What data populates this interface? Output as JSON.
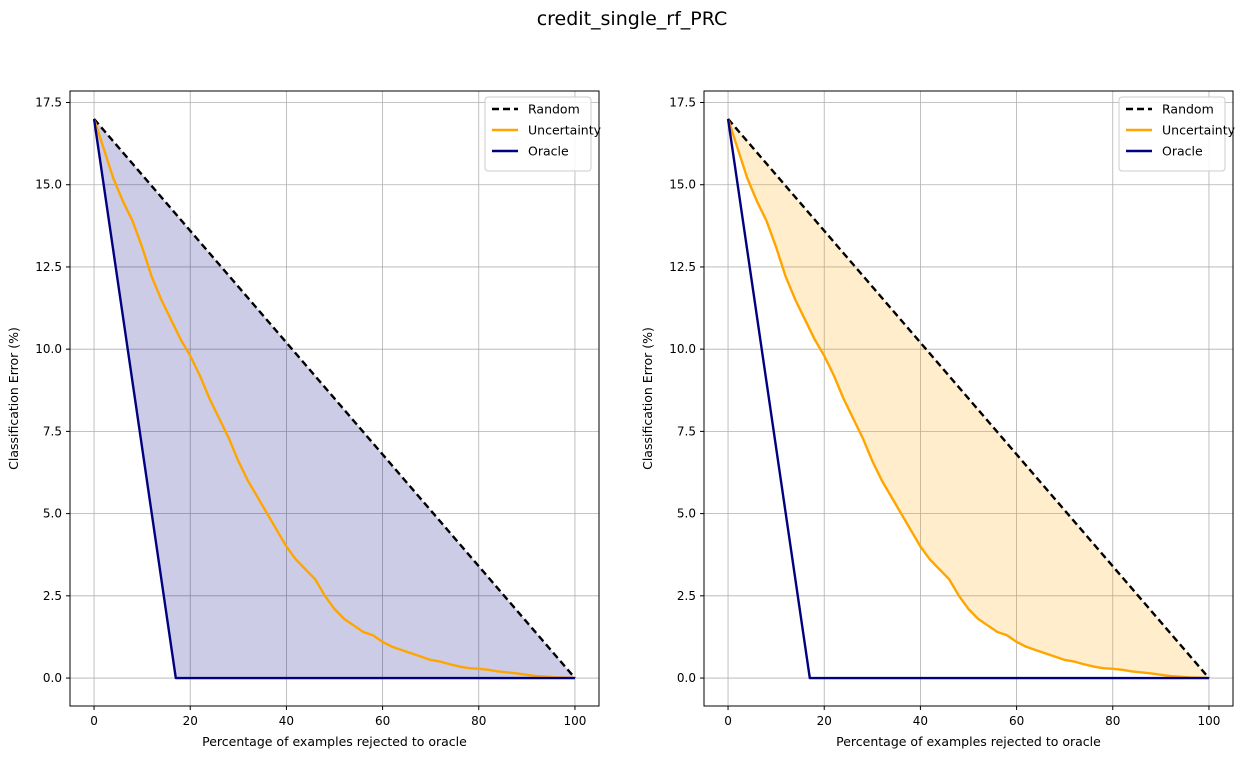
{
  "figure": {
    "suptitle": "credit_single_rf_PRC"
  },
  "chart_data": [
    {
      "type": "line",
      "xlabel": "Percentage of examples rejected to oracle",
      "ylabel": "Classification Error (%)",
      "xlim": [
        -5,
        105
      ],
      "ylim": [
        -0.85,
        17.85
      ],
      "xticks": [
        0,
        20,
        40,
        60,
        80,
        100
      ],
      "yticks": [
        0.0,
        2.5,
        5.0,
        7.5,
        10.0,
        12.5,
        15.0,
        17.5
      ],
      "xtick_labels": [
        "0",
        "20",
        "40",
        "60",
        "80",
        "100"
      ],
      "ytick_labels": [
        "0.0",
        "2.5",
        "5.0",
        "7.5",
        "10.0",
        "12.5",
        "15.0",
        "17.5"
      ],
      "grid": true,
      "legend_position": "top-right",
      "fill": {
        "between": [
          "Random",
          "Oracle"
        ],
        "color": "#000080",
        "alpha": 0.2
      },
      "series": [
        {
          "name": "Random",
          "color": "#000000",
          "style": "dashed",
          "x": [
            0,
            100
          ],
          "y": [
            17.0,
            0.0
          ]
        },
        {
          "name": "Uncertainty",
          "color": "#FFA500",
          "style": "solid",
          "x": [
            0,
            2,
            4,
            6,
            8,
            10,
            12,
            14,
            16,
            18,
            20,
            22,
            24,
            26,
            28,
            30,
            32,
            34,
            36,
            38,
            40,
            42,
            44,
            46,
            48,
            50,
            52,
            54,
            56,
            58,
            60,
            62,
            64,
            66,
            68,
            70,
            72,
            74,
            76,
            78,
            80,
            82,
            84,
            86,
            88,
            90,
            92,
            94,
            96,
            98,
            100
          ],
          "y": [
            17.0,
            16.1,
            15.2,
            14.5,
            13.9,
            13.1,
            12.2,
            11.5,
            10.9,
            10.3,
            9.8,
            9.2,
            8.5,
            7.9,
            7.3,
            6.6,
            6.0,
            5.5,
            5.0,
            4.5,
            4.0,
            3.6,
            3.3,
            3.0,
            2.5,
            2.1,
            1.8,
            1.6,
            1.4,
            1.3,
            1.1,
            0.95,
            0.85,
            0.75,
            0.65,
            0.55,
            0.5,
            0.42,
            0.35,
            0.3,
            0.28,
            0.25,
            0.2,
            0.17,
            0.14,
            0.1,
            0.06,
            0.04,
            0.02,
            0.01,
            0.0
          ]
        },
        {
          "name": "Oracle",
          "color": "#000080",
          "style": "solid",
          "x": [
            0,
            17,
            100
          ],
          "y": [
            17.0,
            0.0,
            0.0
          ]
        }
      ]
    },
    {
      "type": "line",
      "xlabel": "Percentage of examples rejected to oracle",
      "ylabel": "Classification Error (%)",
      "xlim": [
        -5,
        105
      ],
      "ylim": [
        -0.85,
        17.85
      ],
      "xticks": [
        0,
        20,
        40,
        60,
        80,
        100
      ],
      "yticks": [
        0.0,
        2.5,
        5.0,
        7.5,
        10.0,
        12.5,
        15.0,
        17.5
      ],
      "xtick_labels": [
        "0",
        "20",
        "40",
        "60",
        "80",
        "100"
      ],
      "ytick_labels": [
        "0.0",
        "2.5",
        "5.0",
        "7.5",
        "10.0",
        "12.5",
        "15.0",
        "17.5"
      ],
      "grid": true,
      "legend_position": "top-right",
      "fill": {
        "between": [
          "Random",
          "Uncertainty"
        ],
        "color": "#FFA500",
        "alpha": 0.2
      },
      "series": [
        {
          "name": "Random",
          "color": "#000000",
          "style": "dashed",
          "x": [
            0,
            100
          ],
          "y": [
            17.0,
            0.0
          ]
        },
        {
          "name": "Uncertainty",
          "color": "#FFA500",
          "style": "solid",
          "x": [
            0,
            2,
            4,
            6,
            8,
            10,
            12,
            14,
            16,
            18,
            20,
            22,
            24,
            26,
            28,
            30,
            32,
            34,
            36,
            38,
            40,
            42,
            44,
            46,
            48,
            50,
            52,
            54,
            56,
            58,
            60,
            62,
            64,
            66,
            68,
            70,
            72,
            74,
            76,
            78,
            80,
            82,
            84,
            86,
            88,
            90,
            92,
            94,
            96,
            98,
            100
          ],
          "y": [
            17.0,
            16.1,
            15.2,
            14.5,
            13.9,
            13.1,
            12.2,
            11.5,
            10.9,
            10.3,
            9.8,
            9.2,
            8.5,
            7.9,
            7.3,
            6.6,
            6.0,
            5.5,
            5.0,
            4.5,
            4.0,
            3.6,
            3.3,
            3.0,
            2.5,
            2.1,
            1.8,
            1.6,
            1.4,
            1.3,
            1.1,
            0.95,
            0.85,
            0.75,
            0.65,
            0.55,
            0.5,
            0.42,
            0.35,
            0.3,
            0.28,
            0.25,
            0.2,
            0.17,
            0.14,
            0.1,
            0.06,
            0.04,
            0.02,
            0.01,
            0.0
          ]
        },
        {
          "name": "Oracle",
          "color": "#000080",
          "style": "solid",
          "x": [
            0,
            17,
            100
          ],
          "y": [
            17.0,
            0.0,
            0.0
          ]
        }
      ]
    }
  ]
}
